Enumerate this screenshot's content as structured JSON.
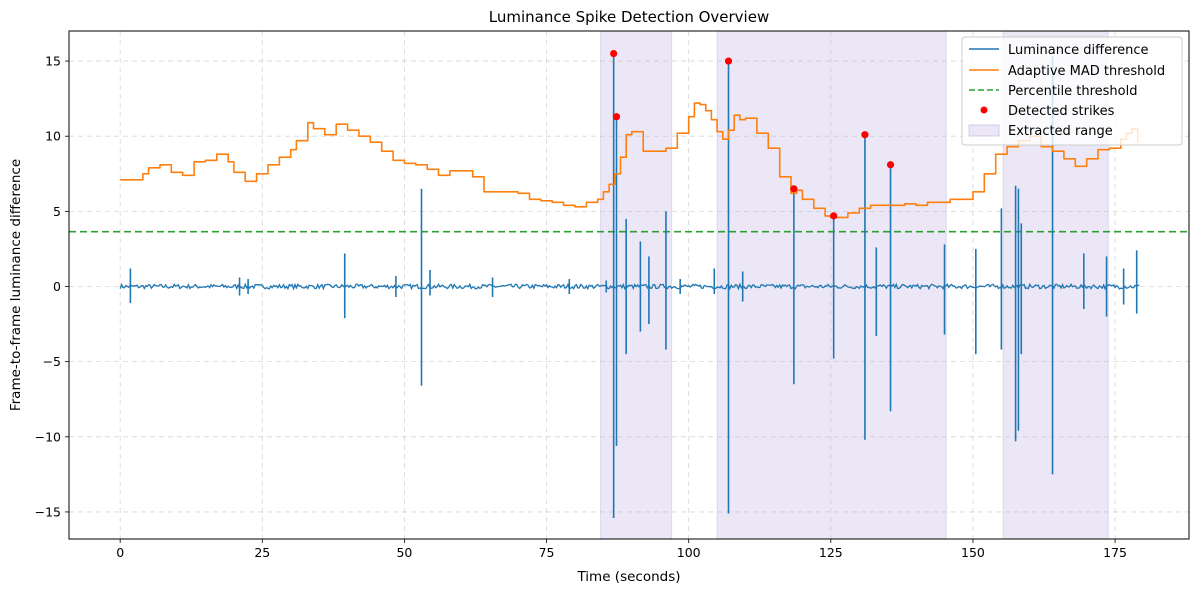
{
  "chart_data": {
    "type": "line",
    "title": "Luminance Spike Detection Overview",
    "xlabel": "Time (seconds)",
    "ylabel": "Frame-to-frame luminance difference",
    "xlim": [
      -9,
      188
    ],
    "ylim": [
      -16.8,
      17
    ],
    "xticks": [
      0,
      25,
      50,
      75,
      100,
      125,
      150,
      175
    ],
    "yticks": [
      -15,
      -10,
      -5,
      0,
      5,
      10,
      15
    ],
    "xtick_labels": [
      "0",
      "25",
      "50",
      "75",
      "100",
      "125",
      "150",
      "175"
    ],
    "ytick_labels": [
      "−15",
      "−10",
      "−5",
      "0",
      "5",
      "10",
      "15"
    ],
    "grid": true,
    "legend_position": "top-right",
    "colors": {
      "luminance": "#1f77b4",
      "mad": "#ff7f0e",
      "percentile": "#2ca02c",
      "strikes": "#ff0000",
      "range": "#b4a0dc"
    },
    "legend": {
      "luminance": "Luminance difference",
      "mad": "Adaptive MAD threshold",
      "percentile": "Percentile threshold",
      "strikes": "Detected strikes",
      "range": "Extracted range"
    },
    "extracted_ranges": [
      [
        84.5,
        97
      ],
      [
        105,
        145.3
      ],
      [
        155.3,
        173.8
      ]
    ],
    "percentile_threshold": 3.65,
    "luminance_baseline_range": [
      0,
      179.3
    ],
    "luminance_spikes": [
      [
        1.8,
        1.2,
        -1.1
      ],
      [
        21,
        0.6,
        -0.6
      ],
      [
        22.5,
        0.5,
        -0.5
      ],
      [
        39.5,
        2.2,
        -2.1
      ],
      [
        48.5,
        0.7,
        -0.7
      ],
      [
        53,
        6.5,
        -6.6
      ],
      [
        54.5,
        1.1,
        -0.6
      ],
      [
        65.5,
        0.6,
        -0.7
      ],
      [
        79,
        0.5,
        -0.5
      ],
      [
        85.5,
        0.4,
        -0.4
      ],
      [
        86.8,
        15.5,
        -15.4
      ],
      [
        87.3,
        11.3,
        -10.6
      ],
      [
        89,
        4.5,
        -4.5
      ],
      [
        91.5,
        3,
        -3
      ],
      [
        93,
        2,
        -2.5
      ],
      [
        96,
        5,
        -4.2
      ],
      [
        98.5,
        0.5,
        -0.5
      ],
      [
        104.5,
        1.2,
        -0.5
      ],
      [
        107,
        15,
        -15.1
      ],
      [
        109.5,
        1,
        -1
      ],
      [
        118.5,
        6.5,
        -6.5
      ],
      [
        125.5,
        4.7,
        -4.8
      ],
      [
        131,
        10.1,
        -10.2
      ],
      [
        133,
        2.6,
        -3.3
      ],
      [
        135.5,
        8.1,
        -8.3
      ],
      [
        145,
        2.8,
        -3.2
      ],
      [
        150.5,
        2.5,
        -4.5
      ],
      [
        155,
        5.2,
        -4.2
      ],
      [
        157.5,
        6.7,
        -10.3
      ],
      [
        158,
        6.5,
        -9.6
      ],
      [
        158.5,
        4.2,
        -4.5
      ],
      [
        164,
        15.3,
        -12.5
      ],
      [
        169.5,
        2.2,
        -1.5
      ],
      [
        173.5,
        2,
        -2
      ],
      [
        176.5,
        1.2,
        -1.2
      ],
      [
        178.8,
        2.4,
        -1.8
      ]
    ],
    "mad_threshold": {
      "x": [
        0,
        2,
        4,
        5,
        7,
        9,
        11,
        13,
        15,
        17,
        19,
        20,
        22,
        24,
        26,
        28,
        30,
        31,
        33,
        34,
        36,
        38,
        40,
        42,
        44,
        46,
        48,
        50,
        52,
        54,
        56,
        58,
        60,
        62,
        64,
        66,
        68,
        70,
        72,
        74,
        76,
        78,
        80,
        82,
        84,
        85,
        86,
        87,
        88,
        89,
        90,
        92,
        94,
        96,
        98,
        100,
        101,
        102,
        103,
        104,
        105,
        106,
        107,
        108,
        109,
        110,
        112,
        114,
        116,
        118,
        119,
        120,
        122,
        124,
        125,
        126,
        128,
        130,
        132,
        134,
        136,
        138,
        140,
        142,
        144,
        146,
        148,
        150,
        152,
        154,
        156,
        158,
        160,
        162,
        164,
        166,
        168,
        170,
        172,
        174,
        176,
        177,
        178,
        179
      ],
      "y": [
        7.1,
        7.1,
        7.5,
        7.9,
        8.1,
        7.6,
        7.4,
        8.3,
        8.4,
        8.8,
        8.3,
        7.6,
        7.0,
        7.5,
        8.1,
        8.6,
        9.1,
        9.7,
        10.9,
        10.5,
        10.1,
        10.8,
        10.4,
        10.0,
        9.6,
        9.0,
        8.4,
        8.2,
        8.1,
        7.8,
        7.4,
        7.7,
        7.7,
        7.3,
        6.3,
        6.3,
        6.3,
        6.2,
        5.8,
        5.7,
        5.6,
        5.4,
        5.3,
        5.6,
        5.8,
        6.3,
        6.8,
        7.5,
        8.6,
        10.1,
        10.3,
        9.0,
        9.0,
        9.2,
        10.2,
        11.3,
        12.2,
        12.1,
        11.7,
        11.1,
        10.3,
        9.8,
        10.4,
        11.4,
        11.1,
        11.2,
        10.2,
        9.2,
        7.3,
        6.2,
        6.4,
        5.8,
        5.2,
        4.7,
        4.6,
        4.6,
        4.9,
        5.2,
        5.4,
        5.4,
        5.4,
        5.5,
        5.4,
        5.6,
        5.6,
        5.8,
        5.8,
        6.3,
        7.5,
        8.8,
        9.3,
        9.7,
        10.0,
        9.3,
        9.0,
        8.5,
        8.0,
        8.5,
        9.1,
        9.2,
        9.8,
        10.2,
        10.5,
        9.6
      ]
    },
    "strikes": {
      "x": [
        86.8,
        87.3,
        107,
        118.5,
        125.5,
        131,
        135.5
      ],
      "y": [
        15.5,
        11.3,
        15.0,
        6.5,
        4.7,
        10.1,
        8.1
      ]
    }
  }
}
